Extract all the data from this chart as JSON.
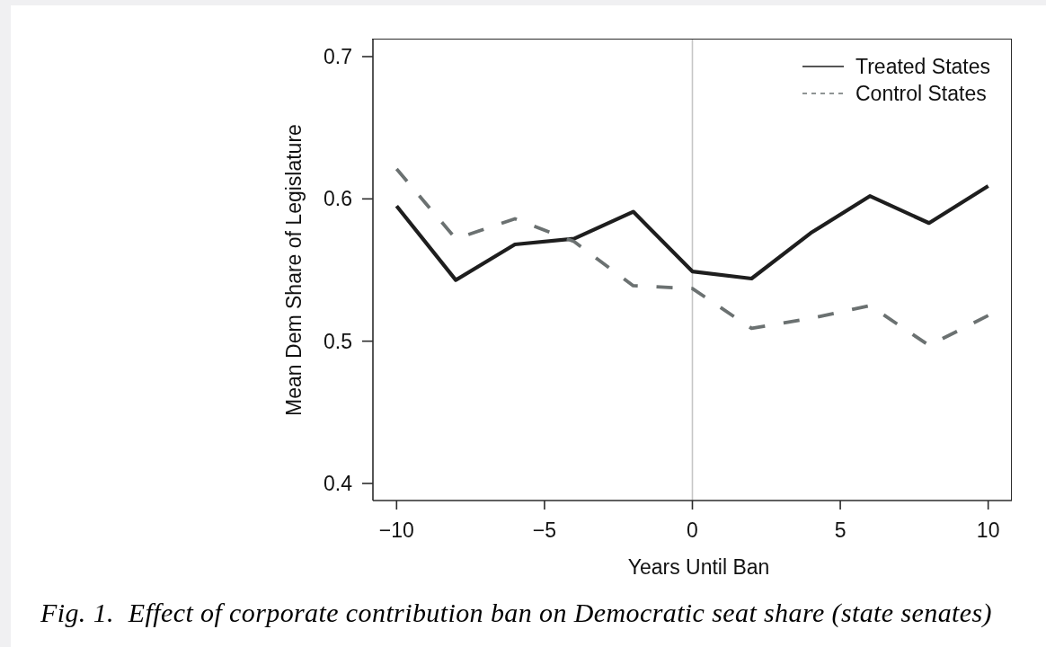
{
  "chart_data": {
    "type": "line",
    "xlabel": "Years Until Ban",
    "ylabel": "Mean Dem Share of Legislature",
    "annotations": [
      "Fig. 1.  Effect of corporate contribution ban on Democratic seat share (state senates)"
    ],
    "x": [
      -10,
      -8,
      -6,
      -4,
      -2,
      0,
      2,
      4,
      6,
      8,
      10
    ],
    "series": [
      {
        "name": "Treated States",
        "color": "#1e1e1e",
        "line_style": "solid",
        "values": [
          0.595,
          0.543,
          0.568,
          0.572,
          0.591,
          0.549,
          0.544,
          0.576,
          0.602,
          0.583,
          0.609
        ]
      },
      {
        "name": "Control States",
        "color": "#6b7171",
        "line_style": "dashed",
        "values": [
          0.621,
          0.572,
          0.586,
          0.57,
          0.539,
          0.537,
          0.509,
          0.516,
          0.525,
          0.497,
          0.518
        ]
      }
    ],
    "xlim": [
      -10.8,
      10.8
    ],
    "ylim": [
      0.388,
      0.712
    ],
    "xticks": [
      {
        "value": -10,
        "label": "−10"
      },
      {
        "value": -5,
        "label": "−5"
      },
      0,
      5,
      10
    ],
    "yticks": [
      0.4,
      0.5,
      0.6,
      0.7
    ],
    "ref_lines": [
      {
        "axis": "x",
        "value": 0,
        "color": "#c6c6c6"
      }
    ],
    "legend": "top right"
  }
}
